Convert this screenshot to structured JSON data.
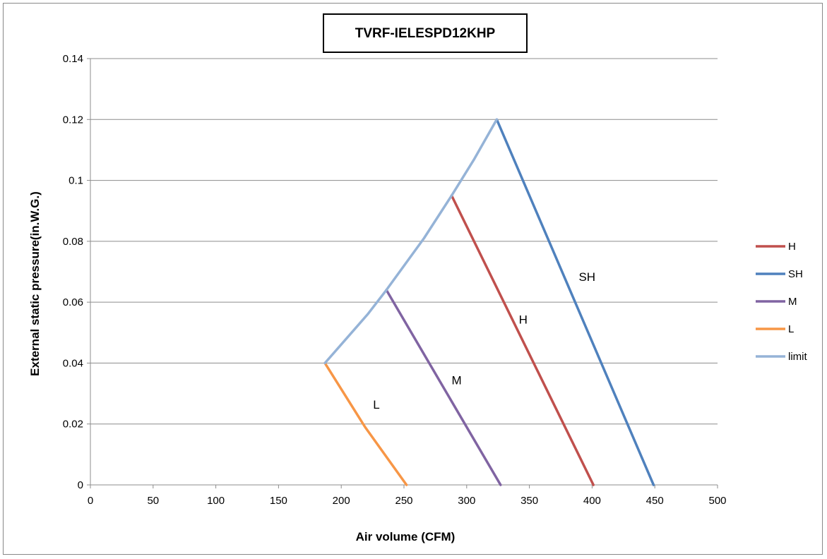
{
  "chart_data": {
    "type": "line",
    "title": "TVRF-IELESPD12KHP",
    "xlabel": "Air volume (CFM)",
    "ylabel": "External static pressure(in.W.G.)",
    "xlim": [
      0,
      500
    ],
    "ylim": [
      0,
      0.14
    ],
    "xticks": [
      0,
      50,
      100,
      150,
      200,
      250,
      300,
      350,
      400,
      450,
      500
    ],
    "yticks": [
      0,
      0.02,
      0.04,
      0.06,
      0.08,
      0.1,
      0.12,
      0.14
    ],
    "ytick_labels": [
      "0",
      "0.02",
      "0.04",
      "0.06",
      "0.08",
      "0.1",
      "0.12",
      "0.14"
    ],
    "grid": "horizontal",
    "legend_position": "right",
    "series": [
      {
        "name": "H",
        "color": "#c0504d",
        "points": [
          [
            288,
            0.095
          ],
          [
            401,
            0
          ]
        ]
      },
      {
        "name": "SH",
        "color": "#4f81bd",
        "points": [
          [
            324,
            0.12
          ],
          [
            449,
            0
          ]
        ]
      },
      {
        "name": "M",
        "color": "#8064a2",
        "points": [
          [
            236,
            0.064
          ],
          [
            327,
            0
          ]
        ]
      },
      {
        "name": "L",
        "color": "#f79646",
        "points": [
          [
            187,
            0.04
          ],
          [
            219,
            0.019
          ],
          [
            252,
            0
          ]
        ]
      },
      {
        "name": "limit",
        "color": "#95b3d7",
        "points": [
          [
            187,
            0.04
          ],
          [
            221,
            0.056
          ],
          [
            236,
            0.064
          ],
          [
            266,
            0.081
          ],
          [
            288,
            0.095
          ],
          [
            306,
            0.107
          ],
          [
            324,
            0.12
          ]
        ]
      }
    ],
    "annotations": [
      {
        "text": "SH",
        "x": 396,
        "y": 0.067
      },
      {
        "text": "H",
        "x": 345,
        "y": 0.053
      },
      {
        "text": "M",
        "x": 292,
        "y": 0.033
      },
      {
        "text": "L",
        "x": 228,
        "y": 0.025
      }
    ]
  }
}
